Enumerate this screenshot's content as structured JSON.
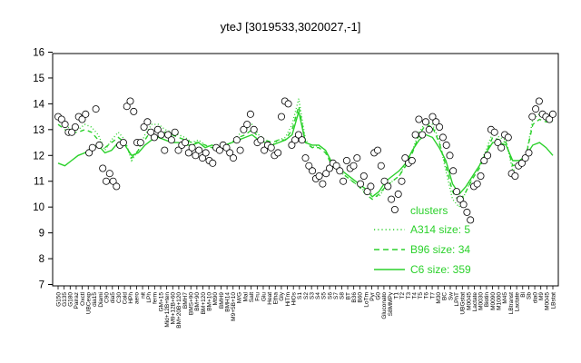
{
  "chart_data": {
    "type": "line",
    "title": "yteJ [3019533,3020027,-1]",
    "xlabel": "",
    "ylabel": "",
    "ylim": [
      7,
      16
    ],
    "yticks": [
      7,
      8,
      9,
      10,
      11,
      12,
      13,
      14,
      15,
      16
    ],
    "x_tick_labels": [
      "G150",
      "G135",
      "G180",
      "Pairaz",
      "Oxctl",
      "UBCexp",
      "dia15",
      "Diami",
      "C90",
      "dia5",
      "C30",
      "Cold",
      "HPh",
      "aero",
      "nit",
      "LPh",
      "ferm",
      "GM+15",
      "Mid+12B+ten",
      "M9+12B+60",
      "BM+20B+120",
      "BMH7",
      "BMS+90",
      "BM+90",
      "BM+120",
      "BM+10",
      "Mt90",
      "BMH9",
      "BMH14",
      "M9+5B+10",
      "M/G",
      "Mal",
      "Salt",
      "Fru",
      "Glu",
      "Heat",
      "Etha",
      "Gly",
      "HiTm",
      "HiOs",
      "S1",
      "S2",
      "S3",
      "S4",
      "S5",
      "S6",
      "S7",
      "S8",
      "BT",
      "B36",
      "B60",
      "LoTm",
      "Pyr",
      "G0",
      "Gluconato",
      "S8MMPy",
      "T1",
      "T2",
      "T3",
      "T4",
      "T5",
      "T6",
      "T7",
      "M30",
      "BC",
      "Sw",
      "LPhT",
      "UBGstat",
      "M0045",
      "Lactate",
      "M0030",
      "Biotin",
      "M0090",
      "M1000",
      "M45",
      "LBtranst",
      "Lactate",
      "Bl",
      "Sb",
      "dia0",
      "M9",
      "M0045",
      "LBstat"
    ],
    "legend": {
      "title": "clusters",
      "entries": [
        {
          "label": "A314 size: 5",
          "style": "dotted"
        },
        {
          "label": "B96 size: 34",
          "style": "dashed"
        },
        {
          "label": "C6 size: 359",
          "style": "solid"
        }
      ]
    },
    "series": [
      {
        "style": "points",
        "values": [
          13.5,
          13.4,
          13.2,
          12.9,
          12.9,
          13.1,
          13.5,
          13.4,
          13.6,
          12.1,
          12.3,
          13.8,
          12.4,
          11.5,
          11.0,
          11.3,
          11.0,
          10.8,
          12.4,
          12.5,
          13.9,
          14.1,
          13.7,
          12.5,
          12.5,
          13.1,
          13.3,
          12.9,
          12.7,
          13.0,
          12.8,
          12.2,
          12.8,
          12.6,
          12.9,
          12.2,
          12.4,
          12.5,
          12.1,
          12.3,
          12.0,
          12.2,
          11.9,
          12.1,
          11.8,
          11.7,
          12.3,
          12.2,
          12.4,
          12.3,
          12.1,
          11.9,
          12.6,
          12.2,
          13.0,
          13.2,
          13.6,
          13.0,
          12.5,
          12.6,
          12.2,
          12.4,
          12.3,
          12.0,
          12.1,
          13.5,
          14.1,
          14.0,
          12.4,
          12.6,
          12.8,
          12.6,
          11.9,
          11.6,
          11.4,
          11.1,
          11.2,
          10.9,
          11.3,
          11.5,
          11.7,
          11.6,
          11.4,
          11.0,
          11.8,
          11.5,
          11.6,
          11.9,
          10.9,
          11.2,
          10.6,
          10.8,
          12.1,
          12.2,
          11.6,
          11.0,
          10.8,
          10.3,
          9.9,
          10.5,
          11.0,
          11.9,
          11.7,
          11.8,
          12.8,
          13.4,
          12.8,
          13.3,
          13.0,
          13.5,
          13.3,
          13.1,
          12.7,
          12.4,
          12.0,
          11.4,
          10.6,
          10.3,
          10.1,
          9.8,
          9.5,
          10.8,
          10.9,
          11.2,
          11.8,
          12.0,
          13.0,
          12.9,
          12.5,
          12.3,
          12.8,
          12.7,
          11.3,
          11.2,
          11.6,
          11.7,
          11.9,
          12.1,
          13.5,
          13.8,
          14.1,
          13.6,
          13.5,
          13.4,
          13.6
        ]
      },
      {
        "style": "dotted",
        "values": [
          13.4,
          13.2,
          13.0,
          13.0,
          13.2,
          13.1,
          12.8,
          12.2,
          12.6,
          12.9,
          12.6,
          11.8,
          12.2,
          12.8,
          13.2,
          13.2,
          13.0,
          12.9,
          12.8,
          12.7,
          12.5,
          12.6,
          12.4,
          12.3,
          12.2,
          12.4,
          12.5,
          12.8,
          13.0,
          13.2,
          12.8,
          12.6,
          12.4,
          12.6,
          12.7,
          13.2,
          14.2,
          12.6,
          12.3,
          12.4,
          12.2,
          11.6,
          11.4,
          11.2,
          11.0,
          10.8,
          10.6,
          10.5,
          10.4,
          10.8,
          11.0,
          11.2,
          11.7,
          12.2,
          12.9,
          13.3,
          13.2,
          12.6,
          11.4,
          10.3,
          10.0,
          10.6,
          11.2,
          11.6,
          12.2,
          12.9,
          12.7,
          12.6,
          11.4,
          11.6,
          12.0,
          13.4,
          13.6,
          13.5,
          13.4
        ]
      },
      {
        "style": "dashed",
        "values": [
          13.2,
          13.0,
          12.9,
          12.9,
          13.0,
          12.9,
          12.6,
          12.3,
          12.5,
          12.7,
          12.5,
          11.9,
          12.2,
          12.6,
          13.0,
          13.0,
          12.9,
          12.8,
          12.7,
          12.6,
          12.5,
          12.5,
          12.4,
          12.3,
          12.3,
          12.4,
          12.5,
          12.7,
          12.8,
          13.0,
          12.7,
          12.6,
          12.5,
          12.6,
          12.6,
          13.0,
          13.9,
          12.5,
          12.3,
          12.3,
          12.1,
          11.6,
          11.4,
          11.2,
          11.0,
          10.8,
          10.5,
          10.3,
          10.5,
          10.8,
          11.0,
          11.2,
          11.6,
          12.1,
          12.8,
          13.2,
          13.1,
          12.5,
          11.6,
          10.6,
          10.2,
          10.6,
          11.1,
          11.5,
          12.1,
          12.7,
          12.6,
          12.5,
          11.6,
          11.7,
          12.0,
          13.2,
          13.4,
          13.3,
          13.3
        ]
      },
      {
        "style": "solid",
        "values": [
          11.7,
          11.6,
          11.8,
          12.0,
          12.1,
          12.3,
          12.4,
          12.1,
          12.2,
          12.5,
          12.4,
          12.0,
          12.1,
          12.4,
          12.6,
          12.7,
          12.6,
          12.5,
          12.5,
          12.4,
          12.4,
          12.5,
          12.3,
          12.4,
          12.3,
          12.4,
          12.5,
          12.6,
          12.7,
          12.8,
          12.6,
          12.5,
          12.4,
          12.5,
          12.6,
          12.8,
          13.7,
          12.5,
          12.4,
          12.4,
          12.2,
          11.7,
          11.5,
          11.3,
          11.1,
          10.9,
          10.7,
          10.4,
          10.6,
          11.0,
          11.2,
          11.4,
          11.7,
          12.2,
          12.6,
          12.8,
          12.7,
          12.3,
          11.8,
          10.9,
          10.5,
          10.8,
          11.2,
          11.6,
          12.1,
          12.5,
          12.5,
          12.4,
          11.8,
          11.8,
          12.0,
          12.4,
          12.5,
          12.3,
          12.0
        ]
      }
    ]
  },
  "colors": {
    "series_line": "#2bd12b",
    "axes": "#000000",
    "points_fill": "#ffffff"
  }
}
